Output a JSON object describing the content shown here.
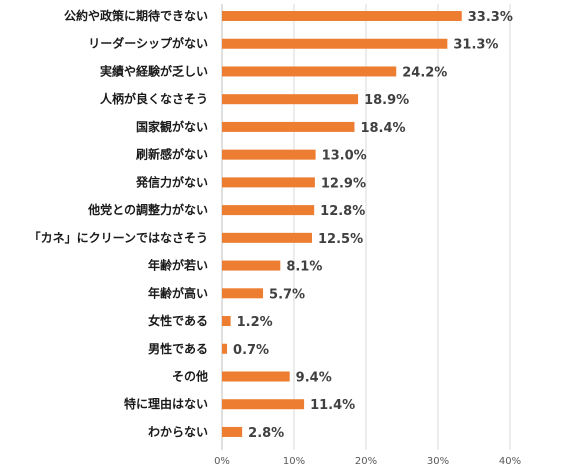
{
  "chart_data": {
    "type": "bar",
    "orientation": "horizontal",
    "categories": [
      "公約や政策に期待できない",
      "リーダーシップがない",
      "実績や経験が乏しい",
      "人柄が良くなさそう",
      "国家観がない",
      "刷新感がない",
      "発信力がない",
      "他党との調整力がない",
      "「カネ」にクリーンではなさそう",
      "年齢が若い",
      "年齢が高い",
      "女性である",
      "男性である",
      "その他",
      "特に理由はない",
      "わからない"
    ],
    "values": [
      33.3,
      31.3,
      24.2,
      18.9,
      18.4,
      13.0,
      12.9,
      12.8,
      12.5,
      8.1,
      5.7,
      1.2,
      0.7,
      9.4,
      11.4,
      2.8
    ],
    "value_labels": [
      "33.3%",
      "31.3%",
      "24.2%",
      "18.9%",
      "18.4%",
      "13.0%",
      "12.9%",
      "12.8%",
      "12.5%",
      "8.1%",
      "5.7%",
      "1.2%",
      "0.7%",
      "9.4%",
      "11.4%",
      "2.8%"
    ],
    "xlim": [
      0,
      40
    ],
    "x_ticks": [
      0,
      10,
      20,
      30,
      40
    ],
    "x_tick_labels": [
      "0%",
      "10%",
      "20%",
      "30%",
      "40%"
    ],
    "grid": true,
    "bar_color": "#ed7d31",
    "title": "",
    "xlabel": "",
    "ylabel": ""
  }
}
